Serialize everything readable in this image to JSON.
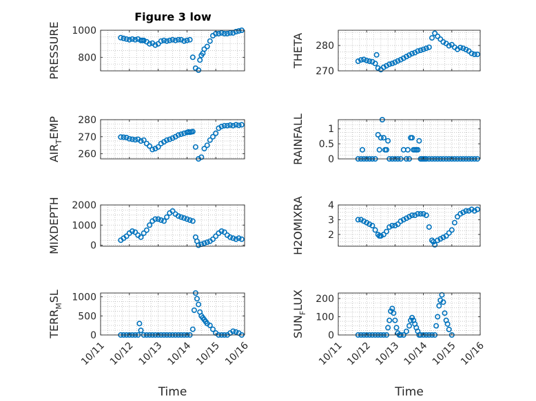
{
  "figure": {
    "title": "Figure 3 low",
    "marker_color": "#0072BD"
  },
  "chart_data": [
    {
      "type": "scatter",
      "ylabel": "PRESSURE",
      "ylim": [
        700,
        1000
      ],
      "yticks": [
        800,
        1000
      ],
      "ytick_labels": [
        "800",
        "1000"
      ],
      "xlim": [
        737709,
        737714
      ],
      "xtick_labels": [],
      "grid": true,
      "series": [
        {
          "x": [
            737709.7,
            737709.8,
            737709.9,
            737710.0,
            737710.1,
            737710.2,
            737710.3,
            737710.4,
            737710.45,
            737710.5,
            737710.6,
            737710.7,
            737710.8,
            737710.9,
            737711.0,
            737711.1,
            737711.2,
            737711.3,
            737711.4,
            737711.5,
            737711.6,
            737711.7,
            737711.8,
            737711.9,
            737712.0,
            737712.1,
            737712.2,
            737712.3,
            737712.4,
            737712.45,
            737712.5,
            737712.55,
            737712.6,
            737712.7,
            737712.8,
            737712.9,
            737713.0,
            737713.1,
            737713.2,
            737713.3,
            737713.4,
            737713.5,
            737713.6,
            737713.7,
            737713.8,
            737713.9
          ],
          "y": [
            945,
            940,
            935,
            930,
            935,
            930,
            935,
            925,
            925,
            925,
            915,
            900,
            905,
            890,
            900,
            920,
            925,
            920,
            925,
            930,
            925,
            930,
            930,
            920,
            925,
            930,
            800,
            720,
            705,
            780,
            815,
            830,
            860,
            880,
            920,
            960,
            975,
            975,
            980,
            975,
            975,
            980,
            980,
            990,
            995,
            1000
          ]
        }
      ]
    },
    {
      "type": "scatter",
      "ylabel": "THETA",
      "ylim": [
        270,
        286
      ],
      "yticks": [
        270,
        280
      ],
      "ytick_labels": [
        "270",
        "280"
      ],
      "xlim": [
        737709,
        737714
      ],
      "xtick_labels": [],
      "grid": true,
      "series": [
        {
          "x": [
            737709.7,
            737709.8,
            737709.9,
            737710.0,
            737710.1,
            737710.2,
            737710.3,
            737710.35,
            737710.4,
            737710.5,
            737710.6,
            737710.7,
            737710.8,
            737710.9,
            737711.0,
            737711.1,
            737711.2,
            737711.3,
            737711.4,
            737711.5,
            737711.6,
            737711.7,
            737711.8,
            737711.9,
            737712.0,
            737712.1,
            737712.2,
            737712.3,
            737712.4,
            737712.5,
            737712.6,
            737712.7,
            737712.8,
            737712.9,
            737713.0,
            737713.1,
            737713.2,
            737713.3,
            737713.4,
            737713.5,
            737713.6,
            737713.7,
            737713.8,
            737713.9
          ],
          "y": [
            273.8,
            274.3,
            274.5,
            274.1,
            273.8,
            273.6,
            272.9,
            276.3,
            271.1,
            270.5,
            271.4,
            272,
            272.6,
            272.9,
            273.4,
            273.9,
            274.4,
            275,
            275.6,
            276.2,
            276.8,
            277.2,
            277.8,
            278.1,
            278.5,
            278.9,
            279.3,
            283,
            284.8,
            283.6,
            282.5,
            281.4,
            280.8,
            279.9,
            280.3,
            279.3,
            278.5,
            279.2,
            278.9,
            278.4,
            277.8,
            276.9,
            276.5,
            276.5
          ]
        }
      ]
    },
    {
      "type": "scatter",
      "ylabel": "AIR_TEMP",
      "ylabel_parts": [
        "AIR",
        "T",
        "EMP"
      ],
      "ylim": [
        257,
        280
      ],
      "yticks": [
        260,
        270,
        280
      ],
      "ytick_labels": [
        "260",
        "270",
        "280"
      ],
      "xlim": [
        737709,
        737714
      ],
      "xtick_labels": [],
      "grid": true,
      "series": [
        {
          "x": [
            737709.7,
            737709.8,
            737709.9,
            737710.0,
            737710.1,
            737710.2,
            737710.3,
            737710.4,
            737710.5,
            737710.6,
            737710.7,
            737710.8,
            737710.9,
            737711.0,
            737711.1,
            737711.2,
            737711.3,
            737711.4,
            737711.5,
            737711.6,
            737711.7,
            737711.8,
            737711.9,
            737712.0,
            737712.05,
            737712.1,
            737712.15,
            737712.2,
            737712.3,
            737712.4,
            737712.5,
            737712.6,
            737712.7,
            737712.8,
            737712.9,
            737713.0,
            737713.1,
            737713.2,
            737713.3,
            737713.4,
            737713.5,
            737713.6,
            737713.7,
            737713.8,
            737713.9
          ],
          "y": [
            269.8,
            269.7,
            269.5,
            268.8,
            268.5,
            268.2,
            268.5,
            267.5,
            268,
            266,
            264.5,
            262.5,
            263,
            264,
            266,
            267,
            268,
            268.5,
            269.2,
            270,
            271,
            271.5,
            272,
            272.5,
            272.8,
            272.6,
            272.8,
            273,
            264,
            257,
            258,
            263,
            265,
            268,
            270,
            272,
            275,
            276,
            276.5,
            276.5,
            276.8,
            276.5,
            277,
            276.7,
            277
          ]
        }
      ]
    },
    {
      "type": "scatter",
      "ylabel": "RAINFALL",
      "ylim": [
        0,
        1.3
      ],
      "yticks": [
        0,
        0.5,
        1
      ],
      "ytick_labels": [
        "0",
        "0.5",
        "1"
      ],
      "xlim": [
        737709,
        737714
      ],
      "xtick_labels": [],
      "grid": true,
      "series": [
        {
          "x": [
            737709.7,
            737709.8,
            737709.85,
            737709.9,
            737710.0,
            737710.1,
            737710.2,
            737710.3,
            737710.4,
            737710.45,
            737710.5,
            737710.55,
            737710.6,
            737710.65,
            737710.7,
            737710.75,
            737710.8,
            737710.9,
            737711.0,
            737711.1,
            737711.2,
            737711.3,
            737711.4,
            737711.45,
            737711.5,
            737711.55,
            737711.6,
            737711.65,
            737711.7,
            737711.75,
            737711.8,
            737711.85,
            737711.9,
            737711.95,
            737712.0,
            737712.05,
            737712.1,
            737712.2,
            737712.3,
            737712.4,
            737712.5,
            737712.6,
            737712.7,
            737712.8,
            737712.9,
            737713.0,
            737713.1,
            737713.2,
            737713.3,
            737713.4,
            737713.5,
            737713.6,
            737713.7,
            737713.8,
            737713.9
          ],
          "y": [
            0,
            0,
            0.3,
            0,
            0,
            0,
            0,
            0,
            0.8,
            0.3,
            0.7,
            1.3,
            0.7,
            0.3,
            0.3,
            0.6,
            0,
            0,
            0,
            0,
            0,
            0.3,
            0,
            0.3,
            0,
            0.7,
            0.7,
            0.3,
            0.3,
            0.3,
            0.3,
            0.6,
            0,
            0,
            0,
            0,
            0,
            0,
            0,
            0,
            0,
            0,
            0,
            0,
            0,
            0,
            0,
            0,
            0,
            0,
            0,
            0,
            0,
            0,
            0
          ]
        }
      ]
    },
    {
      "type": "scatter",
      "ylabel": "MIXDEPTH",
      "ylim": [
        -50,
        2000
      ],
      "yticks": [
        0,
        1000,
        2000
      ],
      "ytick_labels": [
        "0",
        "1000",
        "2000"
      ],
      "xlim": [
        737709,
        737714
      ],
      "xtick_labels": [],
      "grid": true,
      "series": [
        {
          "x": [
            737709.7,
            737709.8,
            737709.9,
            737710.0,
            737710.1,
            737710.2,
            737710.3,
            737710.4,
            737710.5,
            737710.6,
            737710.7,
            737710.8,
            737710.9,
            737711.0,
            737711.1,
            737711.2,
            737711.3,
            737711.4,
            737711.5,
            737711.6,
            737711.7,
            737711.8,
            737711.9,
            737712.0,
            737712.1,
            737712.2,
            737712.3,
            737712.35,
            737712.4,
            737712.5,
            737712.6,
            737712.7,
            737712.8,
            737712.9,
            737713.0,
            737713.1,
            737713.2,
            737713.3,
            737713.4,
            737713.5,
            737713.6,
            737713.7,
            737713.8,
            737713.9
          ],
          "y": [
            250,
            350,
            450,
            600,
            700,
            650,
            500,
            400,
            600,
            750,
            1000,
            1200,
            1300,
            1300,
            1250,
            1200,
            1400,
            1600,
            1700,
            1550,
            1450,
            1400,
            1350,
            1300,
            1250,
            1200,
            400,
            200,
            0,
            50,
            100,
            150,
            200,
            300,
            450,
            600,
            700,
            650,
            500,
            400,
            350,
            300,
            350,
            300
          ]
        }
      ]
    },
    {
      "type": "scatter",
      "ylabel": "H2OMIXRA",
      "ylim": [
        1.2,
        4
      ],
      "yticks": [
        2,
        3,
        4
      ],
      "ytick_labels": [
        "2",
        "3",
        "4"
      ],
      "xlim": [
        737709,
        737714
      ],
      "xtick_labels": [],
      "grid": true,
      "series": [
        {
          "x": [
            737709.7,
            737709.8,
            737709.9,
            737710.0,
            737710.1,
            737710.2,
            737710.3,
            737710.4,
            737710.45,
            737710.5,
            737710.6,
            737710.7,
            737710.8,
            737710.9,
            737711.0,
            737711.1,
            737711.2,
            737711.3,
            737711.4,
            737711.5,
            737711.6,
            737711.7,
            737711.8,
            737711.9,
            737712.0,
            737712.1,
            737712.2,
            737712.3,
            737712.35,
            737712.4,
            737712.5,
            737712.6,
            737712.7,
            737712.8,
            737712.9,
            737713.0,
            737713.1,
            737713.2,
            737713.3,
            737713.4,
            737713.5,
            737713.6,
            737713.7,
            737713.8,
            737713.9
          ],
          "y": [
            3.0,
            3.0,
            2.9,
            2.8,
            2.7,
            2.6,
            2.3,
            2.0,
            1.9,
            1.9,
            2.0,
            2.2,
            2.5,
            2.6,
            2.6,
            2.7,
            2.9,
            3.0,
            3.1,
            3.2,
            3.3,
            3.3,
            3.4,
            3.4,
            3.4,
            3.3,
            2.5,
            1.6,
            1.5,
            1.3,
            1.6,
            1.7,
            1.8,
            1.9,
            2.1,
            2.3,
            2.8,
            3.2,
            3.4,
            3.5,
            3.6,
            3.6,
            3.7,
            3.6,
            3.7
          ]
        }
      ]
    },
    {
      "type": "scatter",
      "ylabel": "TERR_MSL",
      "ylabel_parts": [
        "TERR",
        "M",
        "SL"
      ],
      "ylim": [
        0,
        1100
      ],
      "yticks": [
        0,
        500,
        1000
      ],
      "ytick_labels": [
        "0",
        "500",
        "1000"
      ],
      "xlim": [
        737709,
        737714
      ],
      "xtick_labels": [
        "10/11",
        "10/12",
        "10/13",
        "10/14",
        "10/15",
        "10/16"
      ],
      "xlabel": "Time",
      "grid": true,
      "series": [
        {
          "x": [
            737709.7,
            737709.8,
            737709.9,
            737710.0,
            737710.1,
            737710.2,
            737710.3,
            737710.35,
            737710.4,
            737710.5,
            737710.6,
            737710.7,
            737710.8,
            737710.9,
            737711.0,
            737711.1,
            737711.2,
            737711.3,
            737711.4,
            737711.5,
            737711.6,
            737711.7,
            737711.8,
            737711.9,
            737712.0,
            737712.1,
            737712.2,
            737712.25,
            737712.3,
            737712.35,
            737712.4,
            737712.45,
            737712.5,
            737712.55,
            737712.6,
            737712.65,
            737712.7,
            737712.8,
            737712.9,
            737713.0,
            737713.1,
            737713.2,
            737713.3,
            737713.4,
            737713.5,
            737713.6,
            737713.7,
            737713.8,
            737713.9
          ],
          "y": [
            0,
            0,
            0,
            0,
            0,
            0,
            0,
            300,
            120,
            0,
            0,
            0,
            0,
            0,
            0,
            0,
            0,
            0,
            0,
            0,
            0,
            0,
            0,
            0,
            0,
            0,
            150,
            650,
            1100,
            950,
            800,
            600,
            500,
            450,
            400,
            350,
            300,
            250,
            150,
            50,
            0,
            0,
            0,
            0,
            50,
            100,
            80,
            50,
            0
          ]
        }
      ]
    },
    {
      "type": "scatter",
      "ylabel": "SUN_FLUX",
      "ylabel_parts": [
        "SUN",
        "F",
        "LUX"
      ],
      "ylim": [
        0,
        230
      ],
      "yticks": [
        0,
        100,
        200
      ],
      "ytick_labels": [
        "0",
        "100",
        "200"
      ],
      "xlim": [
        737709,
        737714
      ],
      "xtick_labels": [
        "10/11",
        "10/12",
        "10/13",
        "10/14",
        "10/15",
        "10/16"
      ],
      "xlabel": "Time",
      "grid": true,
      "series": [
        {
          "x": [
            737709.7,
            737709.8,
            737709.9,
            737710.0,
            737710.1,
            737710.2,
            737710.3,
            737710.4,
            737710.5,
            737710.6,
            737710.7,
            737710.75,
            737710.8,
            737710.85,
            737710.9,
            737710.95,
            737711.0,
            737711.05,
            737711.1,
            737711.15,
            737711.2,
            737711.3,
            737711.4,
            737711.5,
            737711.55,
            737711.6,
            737711.65,
            737711.7,
            737711.75,
            737711.8,
            737711.85,
            737711.9,
            737712.0,
            737712.1,
            737712.2,
            737712.3,
            737712.4,
            737712.45,
            737712.5,
            737712.55,
            737712.6,
            737712.65,
            737712.7,
            737712.75,
            737712.8,
            737712.85,
            737712.9,
            737713.0
          ],
          "y": [
            0,
            0,
            0,
            0,
            0,
            0,
            0,
            0,
            0,
            0,
            0,
            40,
            80,
            130,
            145,
            120,
            80,
            40,
            10,
            0,
            0,
            0,
            20,
            50,
            80,
            95,
            80,
            60,
            40,
            20,
            0,
            0,
            0,
            0,
            0,
            0,
            0,
            50,
            100,
            160,
            190,
            220,
            180,
            120,
            80,
            60,
            30,
            0
          ]
        }
      ]
    }
  ]
}
